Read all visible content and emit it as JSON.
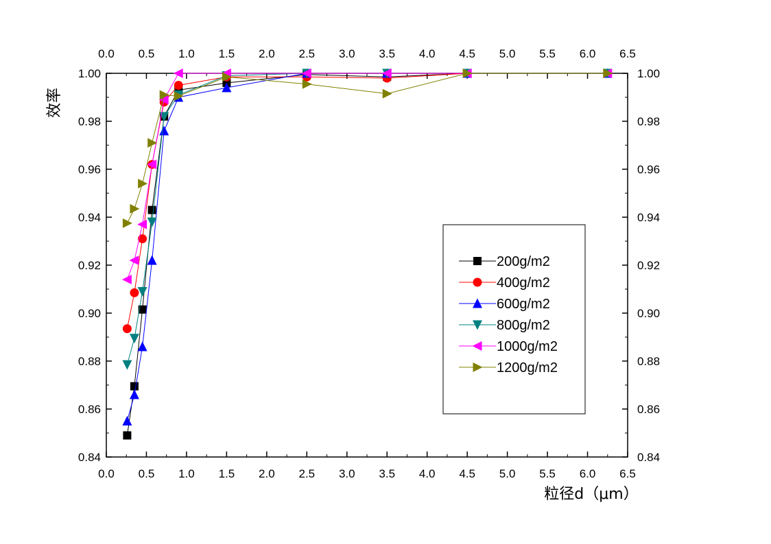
{
  "chart_data": {
    "type": "line",
    "xlabel": "粒径d（μm）",
    "ylabel": "效率",
    "xlim": [
      0.0,
      6.5
    ],
    "ylim": [
      0.84,
      1.0
    ],
    "x_ticks": [
      "0.0",
      "0.5",
      "1.0",
      "1.5",
      "2.0",
      "2.5",
      "3.0",
      "3.5",
      "4.0",
      "4.5",
      "5.0",
      "5.5",
      "6.0",
      "6.5"
    ],
    "y_ticks": [
      "0.84",
      "0.86",
      "0.88",
      "0.90",
      "0.92",
      "0.94",
      "0.96",
      "0.98",
      "1.00"
    ],
    "grid": false,
    "legend_position": "center-right",
    "series": [
      {
        "name": "200g/m2",
        "color": "#000000",
        "marker": "square",
        "x": [
          0.26,
          0.35,
          0.45,
          0.57,
          0.72,
          0.9,
          1.5,
          2.5,
          3.5,
          4.5,
          6.25
        ],
        "y": [
          0.849,
          0.8695,
          0.9015,
          0.943,
          0.982,
          0.993,
          0.996,
          0.9995,
          0.9985,
          1.0,
          1.0
        ]
      },
      {
        "name": "400g/m2",
        "color": "#ff0000",
        "marker": "circle",
        "x": [
          0.26,
          0.35,
          0.45,
          0.57,
          0.72,
          0.9,
          1.5,
          2.5,
          3.5,
          4.5,
          6.25
        ],
        "y": [
          0.8935,
          0.9085,
          0.931,
          0.962,
          0.988,
          0.995,
          0.9985,
          0.9985,
          0.998,
          1.0,
          1.0
        ]
      },
      {
        "name": "600g/m2",
        "color": "#0000ff",
        "marker": "triangle-up",
        "x": [
          0.26,
          0.35,
          0.45,
          0.57,
          0.72,
          0.9,
          1.5,
          2.5,
          3.5,
          4.5,
          6.25
        ],
        "y": [
          0.855,
          0.866,
          0.886,
          0.922,
          0.976,
          0.99,
          0.994,
          1.0,
          1.0,
          1.0,
          1.0
        ]
      },
      {
        "name": "800g/m2",
        "color": "#008080",
        "marker": "triangle-down",
        "x": [
          0.26,
          0.35,
          0.45,
          0.57,
          0.72,
          0.9,
          1.5,
          2.5,
          3.5,
          4.5,
          6.25
        ],
        "y": [
          0.8785,
          0.8895,
          0.909,
          0.938,
          0.982,
          0.991,
          0.999,
          1.0,
          1.0,
          1.0,
          1.0
        ]
      },
      {
        "name": "1000g/m2",
        "color": "#ff00ff",
        "marker": "triangle-left",
        "x": [
          0.26,
          0.35,
          0.45,
          0.57,
          0.72,
          0.9,
          1.5,
          2.5,
          3.5,
          4.5,
          6.25
        ],
        "y": [
          0.914,
          0.922,
          0.937,
          0.962,
          0.989,
          1.0,
          1.0,
          1.0,
          1.0,
          1.0,
          1.0
        ]
      },
      {
        "name": "1200g/m2",
        "color": "#808000",
        "marker": "triangle-right",
        "x": [
          0.26,
          0.35,
          0.45,
          0.57,
          0.72,
          0.9,
          1.5,
          2.5,
          3.5,
          4.5,
          6.25
        ],
        "y": [
          0.9375,
          0.9435,
          0.954,
          0.971,
          0.991,
          0.9905,
          0.9985,
          0.9955,
          0.9915,
          1.0,
          1.0
        ]
      }
    ]
  }
}
